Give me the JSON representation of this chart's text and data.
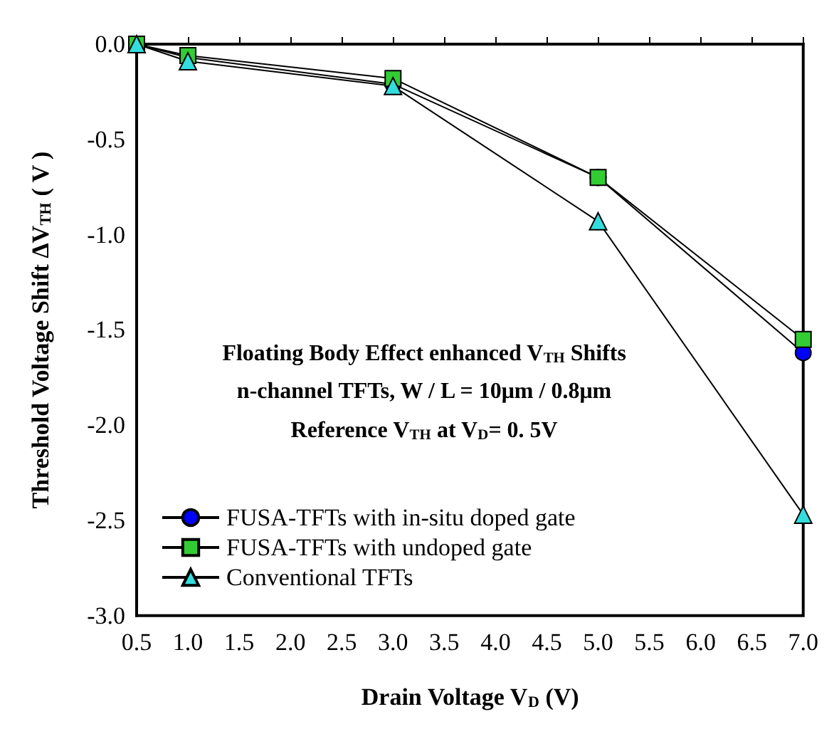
{
  "chart_data": {
    "type": "line",
    "xlabel": "Drain Voltage V$_{D}$ (V)",
    "ylabel": "Threshold Voltage Shift ΔV$_{TH}$ ( V )",
    "annotations": [
      "Floating Body Effect enhanced V$_{TH}$ Shifts",
      "n-channel TFTs, W / L = 10μm / 0.8μm",
      "Reference V$_{TH}$ at V$_{D}$= 0. 5V"
    ],
    "x": [
      0.5,
      1.0,
      3.0,
      5.0,
      7.0
    ],
    "series": [
      {
        "name": "FUSA-TFTs with in-situ doped gate",
        "color": "#0000ff",
        "marker": "circle",
        "values": [
          0,
          -0.07,
          -0.21,
          -0.7,
          -1.62
        ]
      },
      {
        "name": "FUSA-TFTs with undoped gate",
        "color": "#33cc33",
        "marker": "square",
        "values": [
          0,
          -0.06,
          -0.18,
          -0.7,
          -1.55
        ]
      },
      {
        "name": "Conventional TFTs",
        "color": "#33dddd",
        "marker": "triangle",
        "values": [
          0,
          -0.09,
          -0.22,
          -0.93,
          -2.47
        ]
      }
    ],
    "xlim": [
      0.5,
      7.0
    ],
    "xticks": [
      {
        "value": 0.5,
        "label": "0.5"
      },
      {
        "value": 1,
        "label": "1.0"
      },
      {
        "value": 1.5,
        "label": "1.5"
      },
      {
        "value": 2,
        "label": "2.0"
      },
      {
        "value": 2.5,
        "label": "2.5"
      },
      {
        "value": 3,
        "label": "3.0"
      },
      {
        "value": 3.5,
        "label": "3.5"
      },
      {
        "value": 4,
        "label": "4.0"
      },
      {
        "value": 4.5,
        "label": "4.5"
      },
      {
        "value": 5,
        "label": "5.0"
      },
      {
        "value": 5.5,
        "label": "5.5"
      },
      {
        "value": 6,
        "label": "6.0"
      },
      {
        "value": 6.5,
        "label": "6.5"
      },
      {
        "value": 7,
        "label": "7.0"
      }
    ],
    "ylim": [
      -3.0,
      0.0
    ],
    "yticks": [
      {
        "value": -3,
        "label": "-3.0"
      },
      {
        "value": -2.5,
        "label": "-2.5"
      },
      {
        "value": -2,
        "label": "-2.0"
      },
      {
        "value": -1.5,
        "label": "-1.5"
      },
      {
        "value": -1,
        "label": "-1.0"
      },
      {
        "value": -0.5,
        "label": "-0.5"
      },
      {
        "value": 0,
        "label": "0.0"
      }
    ],
    "grid": false,
    "legend": "bottom left",
    "line_style": "solid"
  }
}
